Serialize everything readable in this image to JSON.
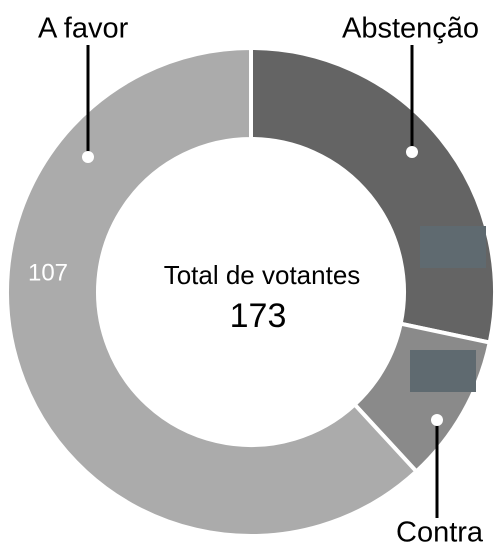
{
  "chart_data": {
    "type": "donut",
    "categories": [
      "Abstenção",
      "Contra",
      "A favor"
    ],
    "values": [
      49,
      17,
      107
    ],
    "colors": [
      "#646464",
      "#8a8a8a",
      "#ababab"
    ],
    "center_label": "Total de votantes",
    "total": 173
  }
}
